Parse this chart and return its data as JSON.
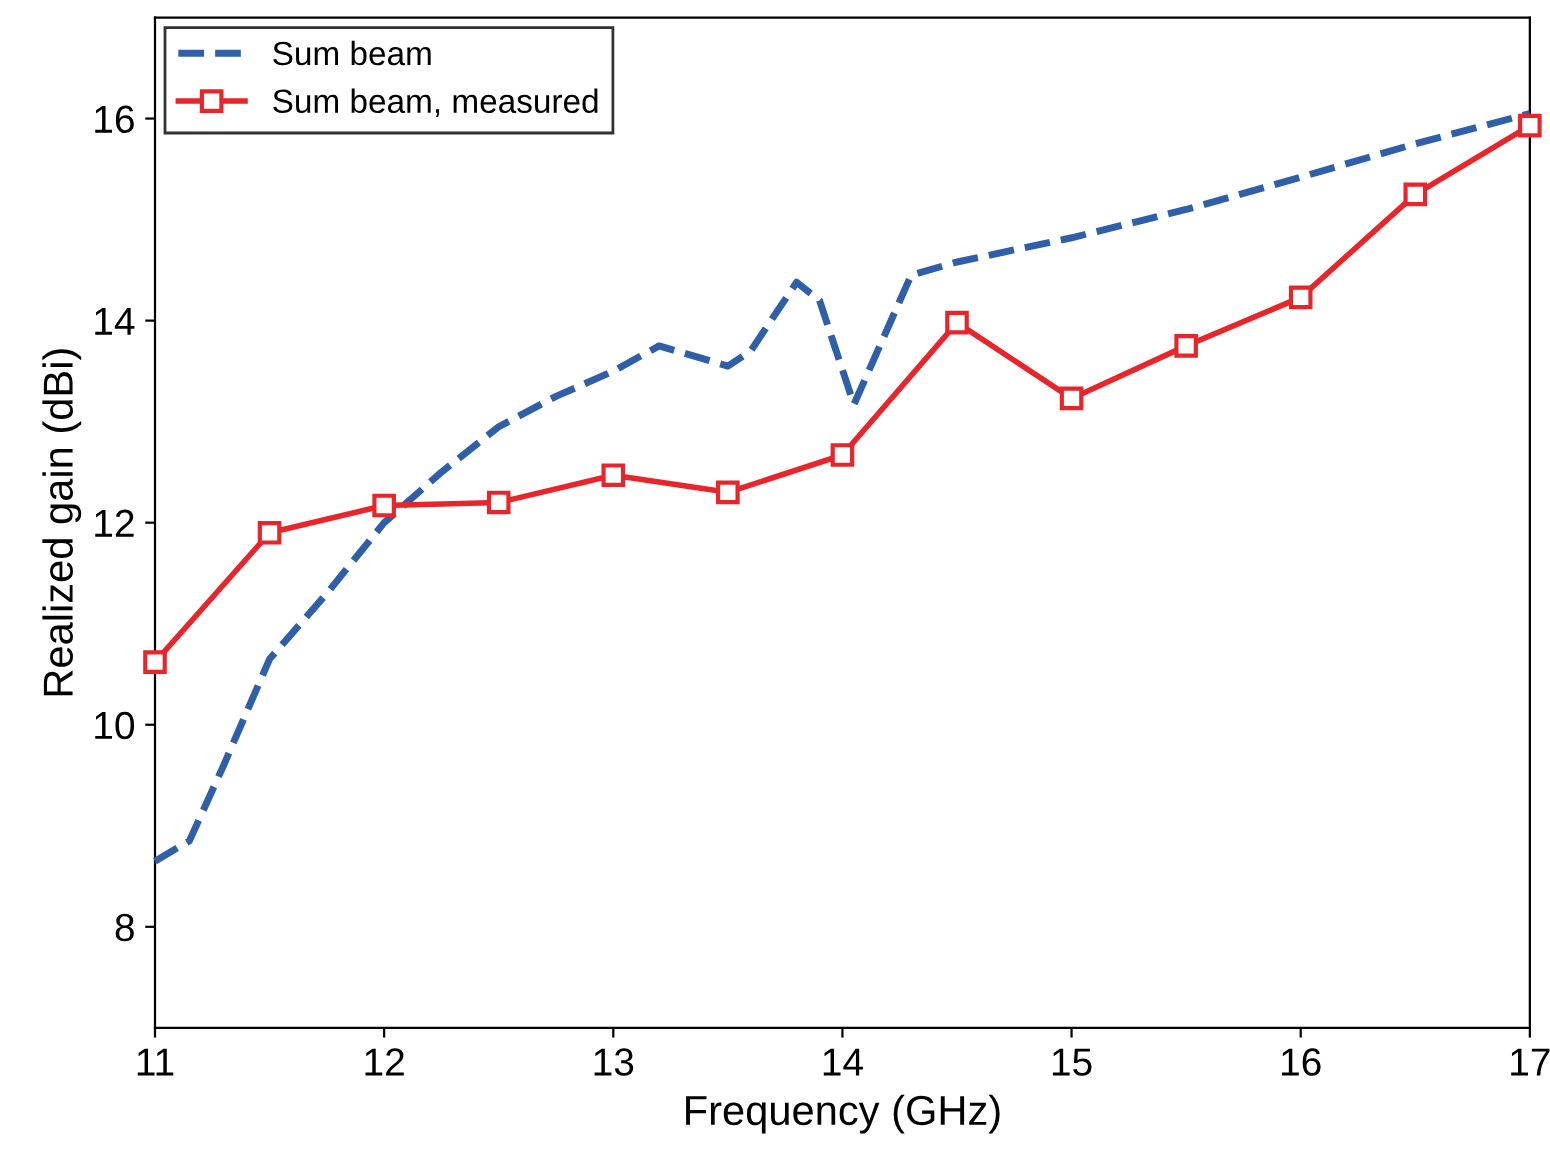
{
  "chart_data": {
    "type": "line",
    "xlabel": "Frequency (GHz)",
    "ylabel": "Realized gain (dBi)",
    "xlim": [
      11,
      17
    ],
    "xticks": [
      11,
      12,
      13,
      14,
      15,
      16,
      17
    ],
    "ylim": [
      7,
      17
    ],
    "yticks": [
      8,
      10,
      12,
      14,
      16
    ],
    "grid": false,
    "legend": "top left",
    "series": [
      {
        "name": "Sum beam",
        "color": "#2e5fa8",
        "line_style": "dashed",
        "marker": "none",
        "x": [
          11,
          11.15,
          11.3,
          11.5,
          11.75,
          12,
          12.25,
          12.5,
          12.75,
          13,
          13.2,
          13.5,
          13.6,
          13.8,
          13.9,
          14.05,
          14.3,
          14.5,
          15,
          15.5,
          16,
          16.5,
          17
        ],
        "values": [
          8.65,
          8.85,
          9.6,
          10.65,
          11.3,
          12.0,
          12.5,
          12.95,
          13.25,
          13.5,
          13.75,
          13.55,
          13.7,
          14.38,
          14.2,
          13.17,
          14.45,
          14.58,
          14.82,
          15.1,
          15.42,
          15.75,
          16.05
        ]
      },
      {
        "name": "Sum beam, measured",
        "color": "#e8252a",
        "line_style": "solid",
        "marker": "square",
        "x": [
          11,
          11.5,
          12,
          12.5,
          13,
          13.5,
          14,
          14.5,
          15,
          15.5,
          16,
          16.5,
          17
        ],
        "values": [
          10.62,
          11.9,
          12.17,
          12.2,
          12.47,
          12.3,
          12.67,
          13.98,
          13.23,
          13.75,
          14.23,
          15.25,
          15.93
        ]
      }
    ]
  }
}
